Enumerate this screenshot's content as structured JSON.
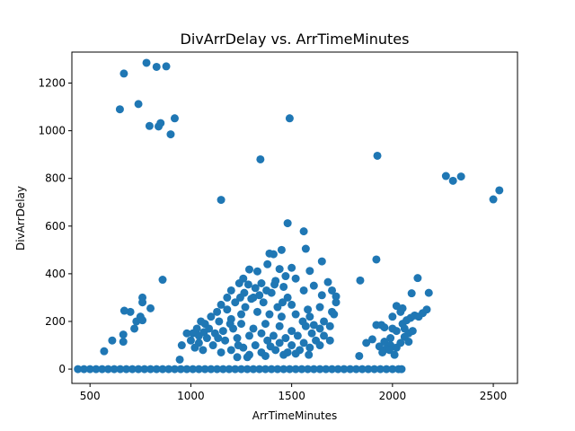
{
  "chart_data": {
    "type": "scatter",
    "title": "DivArrDelay vs. ArrTimeMinutes",
    "xlabel": "ArrTimeMinutes",
    "ylabel": "DivArrDelay",
    "xlim": [
      410,
      2620
    ],
    "ylim": [
      -60,
      1330
    ],
    "xticks": [
      500,
      1000,
      1500,
      2000,
      2500
    ],
    "yticks": [
      0,
      200,
      400,
      600,
      800,
      1000,
      1200
    ],
    "grid": false,
    "color": "#1f77b4",
    "points": [
      [
        780,
        1285
      ],
      [
        668,
        1240
      ],
      [
        830,
        1268
      ],
      [
        878,
        1270
      ],
      [
        648,
        1090
      ],
      [
        740,
        1112
      ],
      [
        795,
        1020
      ],
      [
        840,
        1018
      ],
      [
        850,
        1032
      ],
      [
        920,
        1052
      ],
      [
        900,
        985
      ],
      [
        1490,
        1052
      ],
      [
        1345,
        880
      ],
      [
        1150,
        710
      ],
      [
        1925,
        895
      ],
      [
        2265,
        810
      ],
      [
        2300,
        790
      ],
      [
        2340,
        808
      ],
      [
        2500,
        712
      ],
      [
        2530,
        750
      ],
      [
        1480,
        612
      ],
      [
        1560,
        578
      ],
      [
        1570,
        505
      ],
      [
        1650,
        452
      ],
      [
        1450,
        500
      ],
      [
        1390,
        485
      ],
      [
        1410,
        482
      ],
      [
        1380,
        440
      ],
      [
        1440,
        420
      ],
      [
        1500,
        425
      ],
      [
        1590,
        412
      ],
      [
        1330,
        410
      ],
      [
        1290,
        418
      ],
      [
        1260,
        380
      ],
      [
        1350,
        360
      ],
      [
        1420,
        370
      ],
      [
        1470,
        390
      ],
      [
        1520,
        380
      ],
      [
        1610,
        350
      ],
      [
        1680,
        365
      ],
      [
        1700,
        330
      ],
      [
        1720,
        305
      ],
      [
        1650,
        310
      ],
      [
        1560,
        330
      ],
      [
        1480,
        300
      ],
      [
        1400,
        320
      ],
      [
        1320,
        340
      ],
      [
        1240,
        360
      ],
      [
        1200,
        330
      ],
      [
        1180,
        300
      ],
      [
        1220,
        280
      ],
      [
        1270,
        260
      ],
      [
        1300,
        295
      ],
      [
        1360,
        280
      ],
      [
        1430,
        260
      ],
      [
        1500,
        270
      ],
      [
        1580,
        250
      ],
      [
        1640,
        260
      ],
      [
        1700,
        240
      ],
      [
        1720,
        280
      ],
      [
        1180,
        250
      ],
      [
        1150,
        270
      ],
      [
        1130,
        240
      ],
      [
        1100,
        220
      ],
      [
        1070,
        190
      ],
      [
        1050,
        200
      ],
      [
        1030,
        170
      ],
      [
        1010,
        150
      ],
      [
        980,
        150
      ],
      [
        1000,
        120
      ],
      [
        1040,
        140
      ],
      [
        1090,
        170
      ],
      [
        1140,
        200
      ],
      [
        1200,
        210
      ],
      [
        1250,
        230
      ],
      [
        1330,
        240
      ],
      [
        1390,
        230
      ],
      [
        1450,
        220
      ],
      [
        1520,
        230
      ],
      [
        1590,
        220
      ],
      [
        1660,
        200
      ],
      [
        1690,
        180
      ],
      [
        1640,
        170
      ],
      [
        1570,
        180
      ],
      [
        1500,
        160
      ],
      [
        1440,
        180
      ],
      [
        1370,
        190
      ],
      [
        1310,
        170
      ],
      [
        1250,
        190
      ],
      [
        1210,
        170
      ],
      [
        1160,
        160
      ],
      [
        1120,
        150
      ],
      [
        1080,
        130
      ],
      [
        1040,
        110
      ],
      [
        1020,
        90
      ],
      [
        1060,
        80
      ],
      [
        1110,
        100
      ],
      [
        1170,
        120
      ],
      [
        1230,
        130
      ],
      [
        1290,
        140
      ],
      [
        1350,
        150
      ],
      [
        1410,
        140
      ],
      [
        1470,
        130
      ],
      [
        1530,
        140
      ],
      [
        1600,
        150
      ],
      [
        1660,
        140
      ],
      [
        1620,
        120
      ],
      [
        1560,
        110
      ],
      [
        1500,
        100
      ],
      [
        1440,
        110
      ],
      [
        1380,
        120
      ],
      [
        1320,
        100
      ],
      [
        1260,
        90
      ],
      [
        1200,
        80
      ],
      [
        1150,
        70
      ],
      [
        1290,
        60
      ],
      [
        1350,
        70
      ],
      [
        1420,
        80
      ],
      [
        1480,
        70
      ],
      [
        1540,
        80
      ],
      [
        1590,
        90
      ],
      [
        1230,
        50
      ],
      [
        1280,
        50
      ],
      [
        1370,
        55
      ],
      [
        1460,
        60
      ],
      [
        1520,
        65
      ],
      [
        1640,
        100
      ],
      [
        1690,
        120
      ],
      [
        1710,
        230
      ],
      [
        1265,
        320
      ],
      [
        1310,
        300
      ],
      [
        1340,
        310
      ],
      [
        1460,
        345
      ],
      [
        1415,
        355
      ],
      [
        1375,
        330
      ],
      [
        1285,
        355
      ],
      [
        1245,
        300
      ],
      [
        1455,
        280
      ],
      [
        1555,
        200
      ],
      [
        1610,
        185
      ],
      [
        1195,
        190
      ],
      [
        1135,
        130
      ],
      [
        1065,
        155
      ],
      [
        1235,
        100
      ],
      [
        1395,
        95
      ],
      [
        1585,
        60
      ],
      [
        955,
        100
      ],
      [
        945,
        40
      ],
      [
        860,
        375
      ],
      [
        760,
        300
      ],
      [
        760,
        280
      ],
      [
        800,
        255
      ],
      [
        700,
        240
      ],
      [
        670,
        245
      ],
      [
        750,
        220
      ],
      [
        730,
        200
      ],
      [
        760,
        205
      ],
      [
        720,
        170
      ],
      [
        665,
        145
      ],
      [
        610,
        120
      ],
      [
        665,
        115
      ],
      [
        570,
        75
      ],
      [
        1840,
        372
      ],
      [
        1920,
        460
      ],
      [
        2125,
        382
      ],
      [
        2180,
        320
      ],
      [
        2095,
        318
      ],
      [
        1920,
        185
      ],
      [
        1945,
        185
      ],
      [
        1960,
        175
      ],
      [
        2000,
        170
      ],
      [
        2020,
        160
      ],
      [
        1990,
        130
      ],
      [
        1960,
        115
      ],
      [
        1990,
        100
      ],
      [
        2020,
        90
      ],
      [
        1970,
        85
      ],
      [
        1935,
        95
      ],
      [
        1900,
        125
      ],
      [
        1870,
        110
      ],
      [
        1950,
        70
      ],
      [
        1985,
        80
      ],
      [
        2050,
        190
      ],
      [
        2070,
        205
      ],
      [
        2090,
        215
      ],
      [
        2110,
        225
      ],
      [
        2130,
        220
      ],
      [
        2150,
        235
      ],
      [
        2170,
        250
      ],
      [
        2050,
        255
      ],
      [
        2040,
        240
      ],
      [
        2060,
        170
      ],
      [
        2080,
        150
      ],
      [
        2100,
        160
      ],
      [
        2040,
        110
      ],
      [
        2060,
        135
      ],
      [
        2080,
        115
      ],
      [
        2020,
        265
      ],
      [
        2000,
        220
      ],
      [
        1835,
        55
      ],
      [
        2010,
        60
      ],
      [
        440,
        0
      ],
      [
        470,
        0
      ],
      [
        500,
        0
      ],
      [
        530,
        0
      ],
      [
        560,
        0
      ],
      [
        590,
        0
      ],
      [
        620,
        0
      ],
      [
        650,
        0
      ],
      [
        680,
        0
      ],
      [
        710,
        0
      ],
      [
        740,
        0
      ],
      [
        770,
        0
      ],
      [
        800,
        0
      ],
      [
        830,
        0
      ],
      [
        860,
        0
      ],
      [
        890,
        0
      ],
      [
        920,
        0
      ],
      [
        950,
        0
      ],
      [
        980,
        0
      ],
      [
        1010,
        0
      ],
      [
        1040,
        0
      ],
      [
        1070,
        0
      ],
      [
        1100,
        0
      ],
      [
        1130,
        0
      ],
      [
        1160,
        0
      ],
      [
        1190,
        0
      ],
      [
        1220,
        0
      ],
      [
        1250,
        0
      ],
      [
        1280,
        0
      ],
      [
        1310,
        0
      ],
      [
        1340,
        0
      ],
      [
        1370,
        0
      ],
      [
        1400,
        0
      ],
      [
        1430,
        0
      ],
      [
        1460,
        0
      ],
      [
        1490,
        0
      ],
      [
        1520,
        0
      ],
      [
        1550,
        0
      ],
      [
        1580,
        0
      ],
      [
        1610,
        0
      ],
      [
        1640,
        0
      ],
      [
        1670,
        0
      ],
      [
        1700,
        0
      ],
      [
        1730,
        0
      ],
      [
        1760,
        0
      ],
      [
        1790,
        0
      ],
      [
        1820,
        0
      ],
      [
        1850,
        0
      ],
      [
        1880,
        0
      ],
      [
        1910,
        0
      ],
      [
        1940,
        0
      ],
      [
        1970,
        0
      ],
      [
        2000,
        0
      ],
      [
        2030,
        0
      ],
      [
        2045,
        0
      ]
    ]
  }
}
